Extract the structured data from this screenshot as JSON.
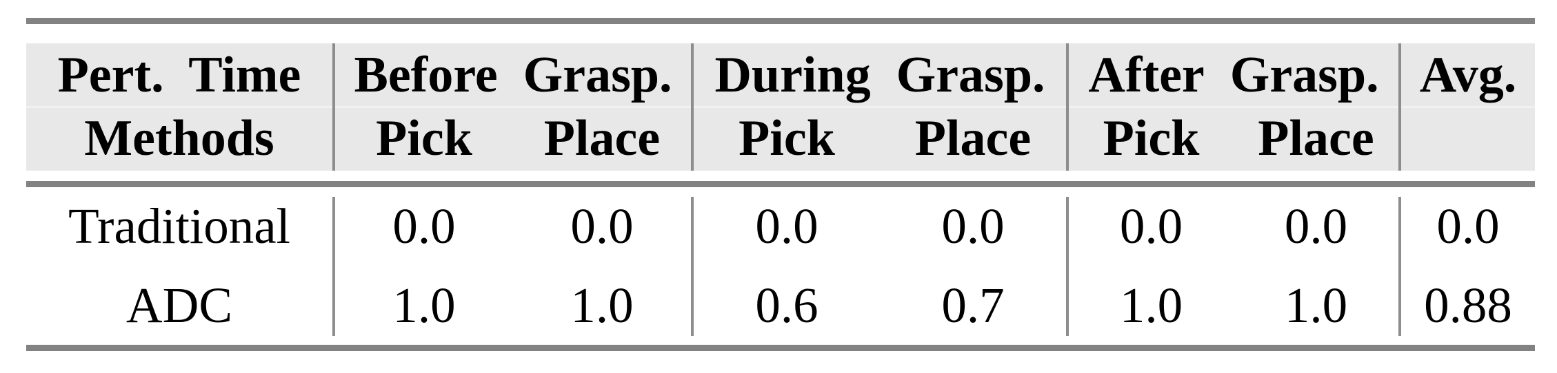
{
  "table": {
    "corner": {
      "line1": "Pert.  Time",
      "line2": "Methods"
    },
    "groups": [
      {
        "label": "Before  Grasp.",
        "sub": [
          "Pick",
          "Place"
        ]
      },
      {
        "label": "During  Grasp.",
        "sub": [
          "Pick",
          "Place"
        ]
      },
      {
        "label": "After  Grasp.",
        "sub": [
          "Pick",
          "Place"
        ]
      }
    ],
    "avg_label": "Avg.",
    "rows": [
      {
        "method": "Traditional",
        "values": [
          "0.0",
          "0.0",
          "0.0",
          "0.0",
          "0.0",
          "0.0"
        ],
        "avg": "0.0"
      },
      {
        "method": "ADC",
        "values": [
          "1.0",
          "1.0",
          "0.6",
          "0.7",
          "1.0",
          "1.0"
        ],
        "avg": "0.88"
      }
    ],
    "colors": {
      "rule": "#828282",
      "separator": "#8d8d8d",
      "header_bg": "#e8e8e8",
      "header_row_divider": "#f1f1f1",
      "text": "#000000",
      "page_bg": "#ffffff"
    }
  }
}
